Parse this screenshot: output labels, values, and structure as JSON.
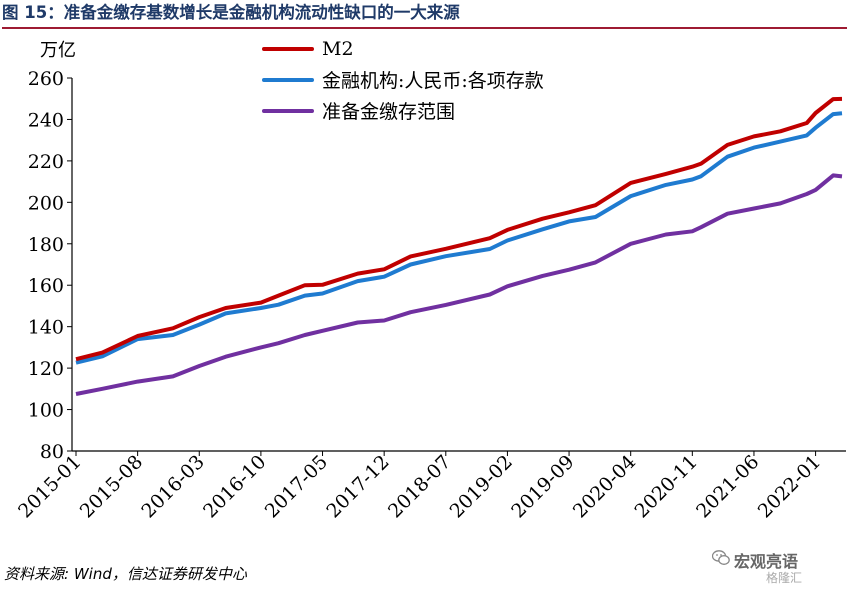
{
  "figure": {
    "title": "图 15：准备金缴存基数增长是金融机构流动性缺口的一大来源",
    "unit": "万亿",
    "source": "资料来源: Wind，信达证券研发中心"
  },
  "watermark": {
    "name": "宏观亮语",
    "sub": "格隆汇",
    "icon": "wechat-icon"
  },
  "chart_data": {
    "type": "line",
    "ylim": [
      80,
      260
    ],
    "yticks": [
      80,
      100,
      120,
      140,
      160,
      180,
      200,
      220,
      240,
      260
    ],
    "xlim": [
      "2015-01",
      "2022-04"
    ],
    "xticks": [
      "2015-01",
      "2015-08",
      "2016-03",
      "2016-10",
      "2017-05",
      "2017-12",
      "2018-07",
      "2019-02",
      "2019-09",
      "2020-04",
      "2020-11",
      "2021-06",
      "2022-01"
    ],
    "legend_position": "top-center",
    "series": [
      {
        "name": "M2",
        "color": "#c00000",
        "points": [
          [
            "2015-01",
            124.3
          ],
          [
            "2015-04",
            127.5
          ],
          [
            "2015-08",
            135.5
          ],
          [
            "2015-12",
            139.2
          ],
          [
            "2016-03",
            144.6
          ],
          [
            "2016-06",
            149.0
          ],
          [
            "2016-10",
            151.6
          ],
          [
            "2016-12",
            155.0
          ],
          [
            "2017-03",
            160.0
          ],
          [
            "2017-05",
            160.2
          ],
          [
            "2017-09",
            165.6
          ],
          [
            "2017-12",
            167.7
          ],
          [
            "2018-03",
            173.9
          ],
          [
            "2018-07",
            177.6
          ],
          [
            "2018-12",
            182.7
          ],
          [
            "2019-02",
            186.7
          ],
          [
            "2019-06",
            192.1
          ],
          [
            "2019-09",
            195.2
          ],
          [
            "2019-12",
            198.6
          ],
          [
            "2020-04",
            209.4
          ],
          [
            "2020-08",
            213.7
          ],
          [
            "2020-11",
            217.2
          ],
          [
            "2020-12",
            218.7
          ],
          [
            "2021-03",
            227.7
          ],
          [
            "2021-06",
            231.8
          ],
          [
            "2021-09",
            234.3
          ],
          [
            "2021-12",
            238.3
          ],
          [
            "2022-01",
            243.1
          ],
          [
            "2022-03",
            249.8
          ],
          [
            "2022-04",
            249.9
          ]
        ]
      },
      {
        "name": "金融机构:人民币:各项存款",
        "color": "#1f7bd0",
        "points": [
          [
            "2015-01",
            122.6
          ],
          [
            "2015-04",
            125.7
          ],
          [
            "2015-08",
            134.0
          ],
          [
            "2015-12",
            136.0
          ],
          [
            "2016-03",
            141.0
          ],
          [
            "2016-06",
            146.4
          ],
          [
            "2016-10",
            149.0
          ],
          [
            "2016-12",
            150.6
          ],
          [
            "2017-03",
            155.0
          ],
          [
            "2017-05",
            156.0
          ],
          [
            "2017-09",
            162.0
          ],
          [
            "2017-12",
            164.1
          ],
          [
            "2018-03",
            170.0
          ],
          [
            "2018-07",
            174.0
          ],
          [
            "2018-12",
            177.5
          ],
          [
            "2019-02",
            181.6
          ],
          [
            "2019-06",
            187.0
          ],
          [
            "2019-09",
            190.8
          ],
          [
            "2019-12",
            192.9
          ],
          [
            "2020-04",
            203.0
          ],
          [
            "2020-08",
            208.4
          ],
          [
            "2020-11",
            211.0
          ],
          [
            "2020-12",
            212.6
          ],
          [
            "2021-03",
            222.0
          ],
          [
            "2021-06",
            226.4
          ],
          [
            "2021-09",
            229.3
          ],
          [
            "2021-12",
            232.3
          ],
          [
            "2022-01",
            236.0
          ],
          [
            "2022-03",
            242.6
          ],
          [
            "2022-04",
            243.0
          ]
        ]
      },
      {
        "name": "准备金缴存范围",
        "color": "#7030a0",
        "points": [
          [
            "2015-01",
            107.5
          ],
          [
            "2015-04",
            110.0
          ],
          [
            "2015-08",
            113.5
          ],
          [
            "2015-12",
            116.0
          ],
          [
            "2016-03",
            121.0
          ],
          [
            "2016-06",
            125.5
          ],
          [
            "2016-10",
            130.0
          ],
          [
            "2016-12",
            132.0
          ],
          [
            "2017-03",
            136.0
          ],
          [
            "2017-05",
            138.0
          ],
          [
            "2017-09",
            142.0
          ],
          [
            "2017-12",
            143.0
          ],
          [
            "2018-03",
            147.0
          ],
          [
            "2018-07",
            150.5
          ],
          [
            "2018-12",
            155.5
          ],
          [
            "2019-02",
            159.5
          ],
          [
            "2019-06",
            164.5
          ],
          [
            "2019-09",
            167.5
          ],
          [
            "2019-12",
            171.0
          ],
          [
            "2020-04",
            180.0
          ],
          [
            "2020-08",
            184.5
          ],
          [
            "2020-11",
            186.0
          ],
          [
            "2020-12",
            188.0
          ],
          [
            "2021-03",
            194.5
          ],
          [
            "2021-06",
            197.0
          ],
          [
            "2021-09",
            199.5
          ],
          [
            "2021-12",
            204.0
          ],
          [
            "2022-01",
            206.0
          ],
          [
            "2022-03",
            213.0
          ],
          [
            "2022-04",
            212.5
          ]
        ]
      }
    ]
  }
}
